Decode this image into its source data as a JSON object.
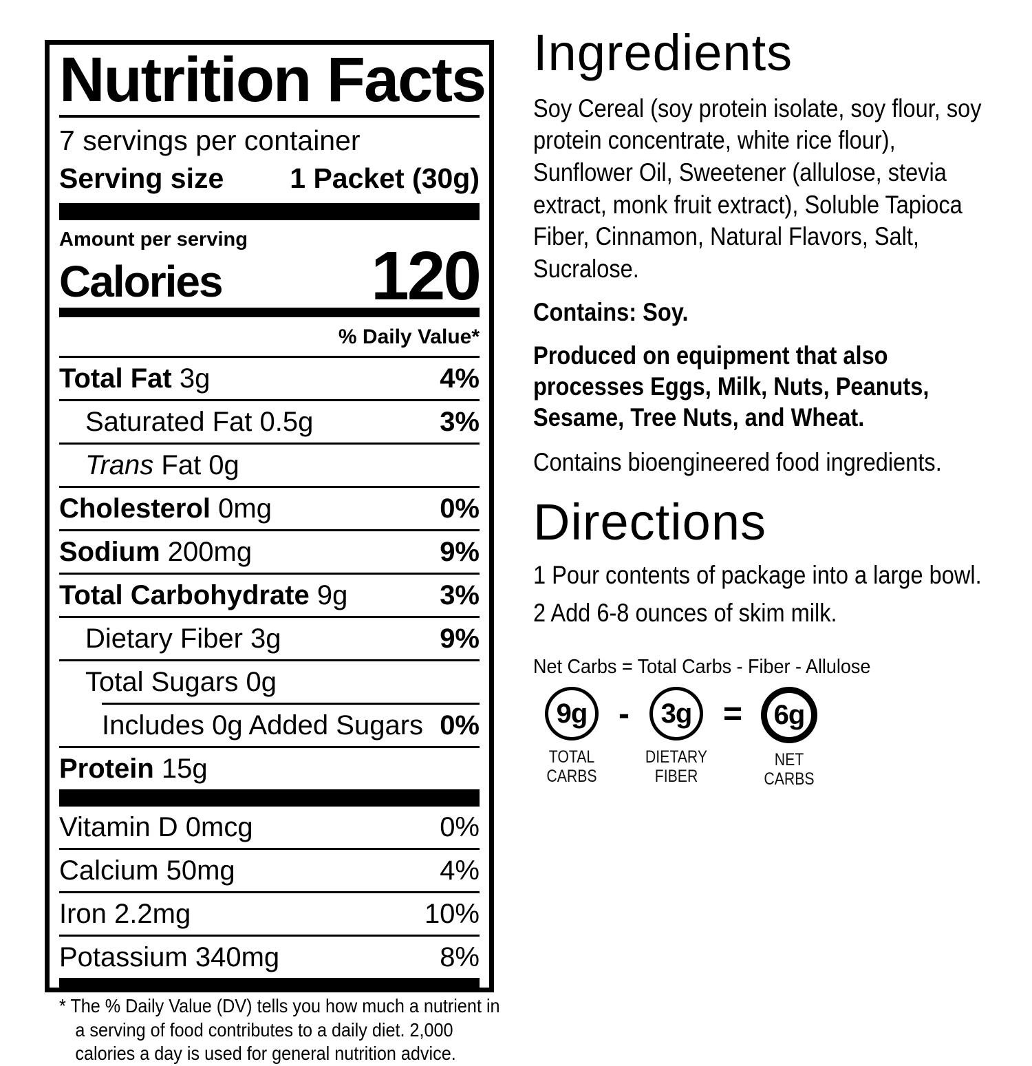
{
  "colors": {
    "text": "#000000",
    "background": "#ffffff"
  },
  "nutrition_label": {
    "title": "Nutrition Facts",
    "servings_per_container": "7 servings per container",
    "serving_size_label": "Serving size",
    "serving_size_value": "1 Packet (30g)",
    "amount_per_serving": "Amount per serving",
    "calories_label": "Calories",
    "calories_value": "120",
    "daily_value_header": "% Daily Value*",
    "rows": [
      {
        "bold": "Total Fat",
        "text": " 3g",
        "dv": "4%"
      },
      {
        "text": "Saturated Fat 0.5g",
        "dv": "3%"
      },
      {
        "italic": "Trans",
        "text": " Fat 0g"
      },
      {
        "bold": "Cholesterol",
        "text": " 0mg",
        "dv": "0%"
      },
      {
        "bold": "Sodium",
        "text": " 200mg",
        "dv": "9%"
      },
      {
        "bold": "Total Carbohydrate",
        "text": " 9g",
        "dv": "3%"
      },
      {
        "text": "Dietary Fiber 3g",
        "dv": "9%"
      },
      {
        "text": "Total Sugars 0g"
      },
      {
        "text": "Includes 0g Added Sugars",
        "dv": "0%"
      },
      {
        "bold": "Protein",
        "text": " 15g"
      }
    ],
    "vitamins": [
      {
        "text": "Vitamin D 0mcg",
        "dv": "0%"
      },
      {
        "text": "Calcium 50mg",
        "dv": "4%"
      },
      {
        "text": "Iron 2.2mg",
        "dv": "10%"
      },
      {
        "text": "Potassium 340mg",
        "dv": "8%"
      }
    ],
    "footnote": "* The % Daily Value (DV) tells you how much a nutrient in a serving of food contributes to a daily diet. 2,000 calories a day is used for general nutrition advice."
  },
  "right_column": {
    "ingredients": {
      "heading": "Ingredients",
      "body": "Soy Cereal (soy protein isolate, soy flour, soy protein concentrate, white rice flour), Sunflower Oil, Sweetener (allulose, stevia extract, monk fruit extract), Soluble Tapioca Fiber, Cinnamon, Natural Flavors, Salt, Sucralose.",
      "contains": "Contains: Soy.",
      "produced": "Produced on equipment that also processes Eggs, Milk, Nuts, Peanuts, Sesame, Tree Nuts, and Wheat.",
      "bioengineered": "Contains bioengineered food ingredients."
    },
    "directions": {
      "heading": "Directions",
      "steps": [
        "1 Pour contents of package into a large bowl.",
        "2 Add 6-8 ounces of skim milk."
      ]
    },
    "net_carbs": {
      "formula": "Net Carbs = Total Carbs - Fiber - Allulose",
      "items": [
        {
          "value": "9g",
          "label_line1": "TOTAL",
          "label_line2": "CARBS"
        },
        {
          "value": "3g",
          "label_line1": "DIETARY",
          "label_line2": "FIBER"
        },
        {
          "value": "6g",
          "label_line1": "NET",
          "label_line2": "CARBS"
        }
      ],
      "operators": [
        "-",
        "="
      ]
    }
  }
}
